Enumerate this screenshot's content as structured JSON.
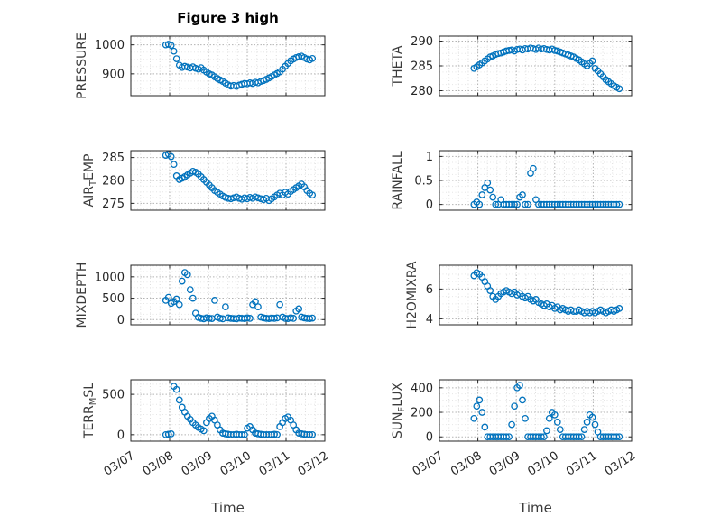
{
  "title": "Figure 3 high",
  "xlabel": "Time",
  "marker_color": "#0072BD",
  "chart_data": {
    "type": "scatter",
    "title": "Figure 3 high",
    "xlabel": "Time",
    "x_tick_labels": [
      "03/07",
      "03/08",
      "03/09",
      "03/10",
      "03/11",
      "03/12"
    ],
    "xlim": [
      0,
      5
    ],
    "grid": "on",
    "legend": "none",
    "x_days": [
      0.9,
      0.97,
      1.04,
      1.11,
      1.18,
      1.25,
      1.32,
      1.39,
      1.46,
      1.53,
      1.6,
      1.67,
      1.74,
      1.81,
      1.88,
      1.95,
      2.02,
      2.09,
      2.16,
      2.23,
      2.3,
      2.37,
      2.44,
      2.51,
      2.58,
      2.65,
      2.72,
      2.79,
      2.86,
      2.93,
      3.0,
      3.07,
      3.14,
      3.21,
      3.28,
      3.35,
      3.42,
      3.49,
      3.56,
      3.63,
      3.7,
      3.77,
      3.84,
      3.91,
      3.98,
      4.05,
      4.12,
      4.19,
      4.26,
      4.33,
      4.4,
      4.47,
      4.54,
      4.61,
      4.68
    ],
    "subplots": [
      {
        "name": "PRESSURE",
        "ylabel": [
          {
            "text": "PRESSURE",
            "sub": false
          }
        ],
        "ylim": [
          825,
          1030
        ],
        "yticks": [
          900,
          1000
        ],
        "y": [
          1000,
          1002,
          998,
          978,
          952,
          930,
          922,
          926,
          923,
          920,
          924,
          919,
          916,
          921,
          913,
          906,
          900,
          896,
          890,
          884,
          879,
          874,
          868,
          862,
          858,
          860,
          857,
          861,
          864,
          867,
          866,
          869,
          867,
          871,
          869,
          874,
          877,
          881,
          886,
          891,
          896,
          901,
          907,
          916,
          926,
          936,
          945,
          951,
          956,
          959,
          961,
          956,
          951,
          948,
          953
        ]
      },
      {
        "name": "THETA",
        "ylabel": [
          {
            "text": "THETA",
            "sub": false
          }
        ],
        "ylim": [
          279,
          291
        ],
        "yticks": [
          280,
          285,
          290
        ],
        "y": [
          284.5,
          284.8,
          285.2,
          285.6,
          286.0,
          286.4,
          286.8,
          287.0,
          287.3,
          287.5,
          287.6,
          287.8,
          288.0,
          288.1,
          288.2,
          288.0,
          288.3,
          288.4,
          288.2,
          288.5,
          288.4,
          288.6,
          288.5,
          288.3,
          288.6,
          288.4,
          288.5,
          288.3,
          288.2,
          288.4,
          288.1,
          288.0,
          287.8,
          287.6,
          287.4,
          287.2,
          287.0,
          286.8,
          286.5,
          286.2,
          285.8,
          285.4,
          285.0,
          285.5,
          286.0,
          284.5,
          284.0,
          283.4,
          282.8,
          282.2,
          281.8,
          281.4,
          281.0,
          280.7,
          280.4
        ]
      },
      {
        "name": "AIR_TEMP",
        "ylabel": [
          {
            "text": "AIR",
            "sub": false
          },
          {
            "text": "T",
            "sub": true
          },
          {
            "text": "EMP",
            "sub": false
          }
        ],
        "ylim": [
          273.5,
          286.5
        ],
        "yticks": [
          275,
          280,
          285
        ],
        "y": [
          285.5,
          285.8,
          285.2,
          283.5,
          281.0,
          280.2,
          280.5,
          280.8,
          281.2,
          281.6,
          282.0,
          281.8,
          281.4,
          280.8,
          280.2,
          279.6,
          279.0,
          278.4,
          277.8,
          277.4,
          277.0,
          276.6,
          276.3,
          276.1,
          276.0,
          276.2,
          276.4,
          276.1,
          275.9,
          276.2,
          276.0,
          276.3,
          276.1,
          276.4,
          276.2,
          276.0,
          275.8,
          276.1,
          275.6,
          276.0,
          276.4,
          276.8,
          277.2,
          276.8,
          277.4,
          277.0,
          277.6,
          278.0,
          278.4,
          278.8,
          279.2,
          278.6,
          277.8,
          277.2,
          276.8
        ]
      },
      {
        "name": "RAINFALL",
        "ylabel": [
          {
            "text": "RAINFALL",
            "sub": false
          }
        ],
        "ylim": [
          -0.12,
          1.12
        ],
        "yticks": [
          0,
          0.5,
          1
        ],
        "y": [
          0,
          0.05,
          0,
          0.2,
          0.35,
          0.45,
          0.3,
          0.15,
          0,
          0,
          0.1,
          0,
          0,
          0,
          0,
          0,
          0,
          0.15,
          0.2,
          0,
          0,
          0.65,
          0.75,
          0.1,
          0,
          0,
          0,
          0,
          0,
          0,
          0,
          0,
          0,
          0,
          0,
          0,
          0,
          0,
          0,
          0,
          0,
          0,
          0,
          0,
          0,
          0,
          0,
          0,
          0,
          0,
          0,
          0,
          0,
          0,
          0
        ]
      },
      {
        "name": "MIXDEPTH",
        "ylabel": [
          {
            "text": "MIXDEPTH",
            "sub": false
          }
        ],
        "ylim": [
          -120,
          1270
        ],
        "yticks": [
          0,
          500,
          1000
        ],
        "y": [
          450,
          520,
          380,
          420,
          480,
          350,
          900,
          1100,
          1050,
          700,
          500,
          150,
          50,
          30,
          20,
          40,
          30,
          25,
          450,
          60,
          30,
          20,
          300,
          40,
          30,
          25,
          20,
          35,
          30,
          25,
          40,
          30,
          350,
          420,
          300,
          60,
          40,
          30,
          25,
          35,
          30,
          40,
          350,
          60,
          30,
          25,
          40,
          30,
          200,
          250,
          60,
          40,
          30,
          25,
          35
        ]
      },
      {
        "name": "H2OMIXRA",
        "ylabel": [
          {
            "text": "H2OMIXRA",
            "sub": false
          }
        ],
        "ylim": [
          3.6,
          7.6
        ],
        "yticks": [
          4,
          6
        ],
        "y": [
          6.9,
          7.1,
          7.0,
          6.8,
          6.5,
          6.2,
          5.9,
          5.5,
          5.3,
          5.5,
          5.7,
          5.8,
          5.9,
          5.8,
          5.7,
          5.8,
          5.6,
          5.7,
          5.5,
          5.4,
          5.5,
          5.3,
          5.2,
          5.3,
          5.1,
          5.0,
          4.9,
          5.0,
          4.8,
          4.9,
          4.7,
          4.8,
          4.6,
          4.7,
          4.6,
          4.5,
          4.6,
          4.5,
          4.5,
          4.6,
          4.5,
          4.4,
          4.5,
          4.4,
          4.5,
          4.4,
          4.5,
          4.6,
          4.5,
          4.4,
          4.5,
          4.6,
          4.5,
          4.6,
          4.7
        ]
      },
      {
        "name": "TERR_MSL",
        "ylabel": [
          {
            "text": "TERR",
            "sub": false
          },
          {
            "text": "M",
            "sub": true
          },
          {
            "text": "SL",
            "sub": false
          }
        ],
        "ylim": [
          -80,
          680
        ],
        "yticks": [
          0,
          500
        ],
        "y": [
          0,
          5,
          10,
          600,
          560,
          430,
          340,
          280,
          230,
          190,
          150,
          120,
          90,
          70,
          50,
          150,
          200,
          230,
          180,
          120,
          60,
          20,
          10,
          5,
          0,
          0,
          5,
          0,
          0,
          0,
          80,
          100,
          60,
          20,
          10,
          5,
          0,
          0,
          0,
          0,
          5,
          0,
          100,
          150,
          200,
          220,
          180,
          120,
          60,
          20,
          10,
          5,
          0,
          0,
          0
        ]
      },
      {
        "name": "SUN_FLUX",
        "ylabel": [
          {
            "text": "SUN",
            "sub": false
          },
          {
            "text": "F",
            "sub": true
          },
          {
            "text": "LUX",
            "sub": false
          }
        ],
        "ylim": [
          -35,
          465
        ],
        "yticks": [
          0,
          200,
          400
        ],
        "y": [
          150,
          250,
          300,
          200,
          80,
          0,
          0,
          0,
          0,
          0,
          0,
          0,
          0,
          0,
          100,
          250,
          400,
          420,
          300,
          150,
          0,
          0,
          0,
          0,
          0,
          0,
          0,
          50,
          150,
          200,
          180,
          120,
          60,
          0,
          0,
          0,
          0,
          0,
          0,
          0,
          0,
          60,
          120,
          180,
          160,
          100,
          40,
          0,
          0,
          0,
          0,
          0,
          0,
          0,
          0
        ]
      }
    ]
  }
}
